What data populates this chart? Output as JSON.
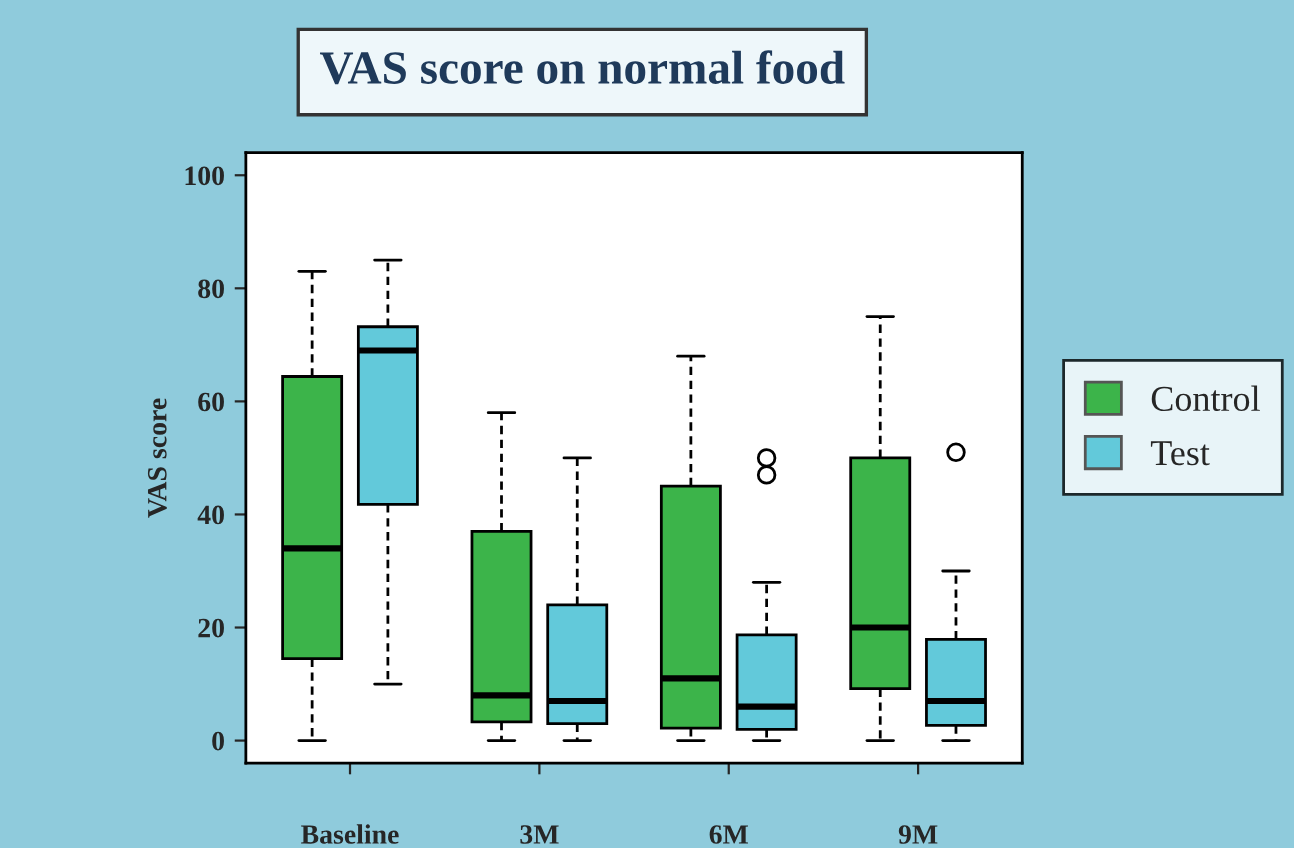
{
  "chart_data": {
    "type": "box",
    "title": "VAS score on normal food",
    "ylabel": "VAS score",
    "categories": [
      "Baseline",
      "3M",
      "6M",
      "9M"
    ],
    "ylim": [
      -4,
      104
    ],
    "yticks": [
      0,
      20,
      40,
      60,
      80,
      100
    ],
    "grid": false,
    "legend": "right",
    "series": [
      {
        "name": "Control",
        "color": "#3cb44a",
        "boxes": [
          {
            "low": 0,
            "q1": 14.5,
            "median": 34,
            "q3": 64.4,
            "high": 83
          },
          {
            "low": 0,
            "q1": 3.3,
            "median": 8,
            "q3": 37,
            "high": 58
          },
          {
            "low": 0,
            "q1": 2.2,
            "median": 11,
            "q3": 45,
            "high": 68
          },
          {
            "low": 0,
            "q1": 9.2,
            "median": 20,
            "q3": 50,
            "high": 75
          }
        ]
      },
      {
        "name": "Test",
        "color": "#62c9da",
        "boxes": [
          {
            "low": 10,
            "q1": 41.8,
            "median": 69,
            "q3": 73.2,
            "high": 85
          },
          {
            "low": 0,
            "q1": 3,
            "median": 7,
            "q3": 24,
            "high": 50
          },
          {
            "low": 0,
            "q1": 2,
            "median": 6,
            "q3": 18.7,
            "high": 28,
            "outliers": [
              47,
              50
            ]
          },
          {
            "low": 0,
            "q1": 2.7,
            "median": 7,
            "q3": 17.9,
            "high": 30,
            "outliers": [
              51
            ]
          }
        ]
      }
    ]
  }
}
